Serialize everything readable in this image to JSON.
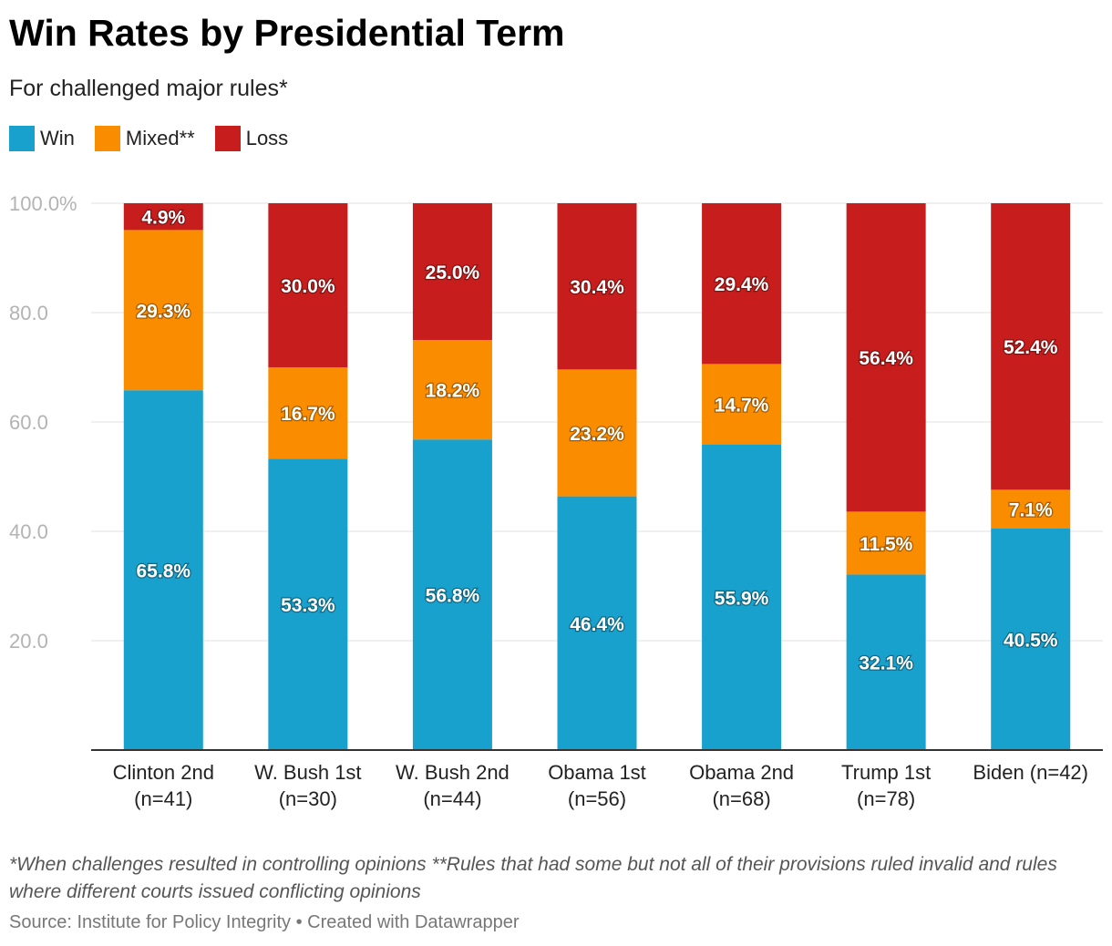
{
  "title": "Win Rates by Presidential Term",
  "subtitle": "For challenged major rules*",
  "legend": [
    {
      "label": "Win",
      "color": "#18a1cd"
    },
    {
      "label": "Mixed**",
      "color": "#fa8c00"
    },
    {
      "label": "Loss",
      "color": "#c71e1d"
    }
  ],
  "chart_data": {
    "type": "bar",
    "stacked": true,
    "categories": [
      [
        "Clinton 2nd",
        "(n=41)"
      ],
      [
        "W. Bush 1st",
        "(n=30)"
      ],
      [
        "W. Bush 2nd",
        "(n=44)"
      ],
      [
        "Obama 1st",
        "(n=56)"
      ],
      [
        "Obama 2nd",
        "(n=68)"
      ],
      [
        "Trump 1st",
        "(n=78)"
      ],
      [
        "Biden (n=42)",
        ""
      ]
    ],
    "series": [
      {
        "name": "Win",
        "color": "#18a1cd",
        "values": [
          65.8,
          53.3,
          56.8,
          46.4,
          55.9,
          32.1,
          40.5
        ]
      },
      {
        "name": "Mixed**",
        "color": "#fa8c00",
        "values": [
          29.3,
          16.7,
          18.2,
          23.2,
          14.7,
          11.5,
          7.1
        ]
      },
      {
        "name": "Loss",
        "color": "#c71e1d",
        "values": [
          4.9,
          30.0,
          25.0,
          30.4,
          29.4,
          56.4,
          52.4
        ]
      }
    ],
    "y_ticks": [
      "20.0",
      "40.0",
      "60.0",
      "80.0",
      "100.0%"
    ],
    "y_tick_values": [
      20,
      40,
      60,
      80,
      100
    ],
    "ylim": [
      0,
      100
    ],
    "grid": true,
    "legend_position": "top-left"
  },
  "footnote": "*When challenges resulted in controlling opinions **Rules that had some but not all of their provisions ruled invalid and rules where different courts issued conflicting opinions",
  "source": "Source: Institute for Policy Integrity • Created with Datawrapper"
}
